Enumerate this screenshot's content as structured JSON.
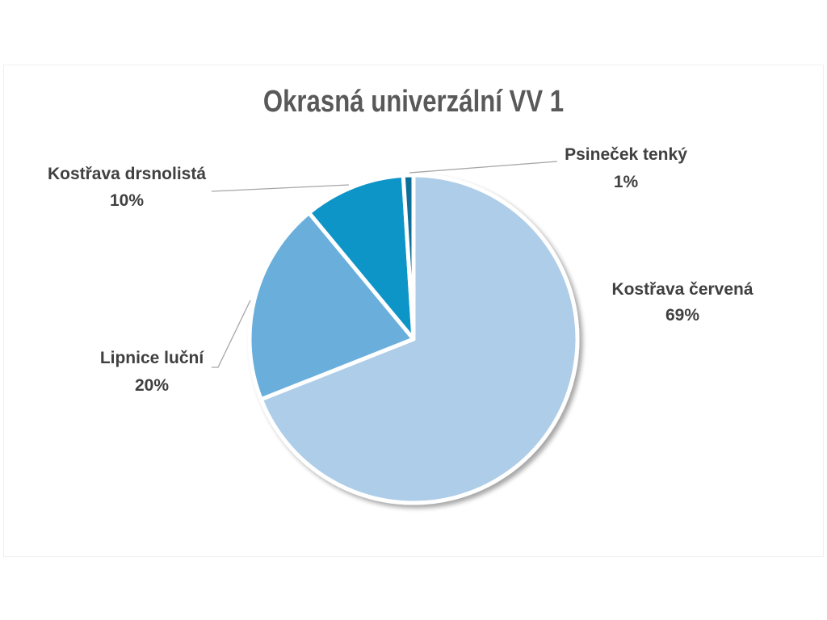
{
  "chart_data": {
    "type": "pie",
    "title": "Okrasná univerzální VV 1",
    "slices": [
      {
        "name": "Kostřava červená",
        "value": 69,
        "label": "69%",
        "color": "#aecde8"
      },
      {
        "name": "Lipnice luční",
        "value": 20,
        "label": "20%",
        "color": "#6aafdc"
      },
      {
        "name": "Kostřava drsnolistá",
        "value": 10,
        "label": "10%",
        "color": "#1195c8"
      },
      {
        "name": "Psineček tenký",
        "value": 1,
        "label": "1%",
        "color": "#0a6e9a"
      }
    ],
    "legend": "none",
    "data_labels": "outside with leader lines"
  }
}
